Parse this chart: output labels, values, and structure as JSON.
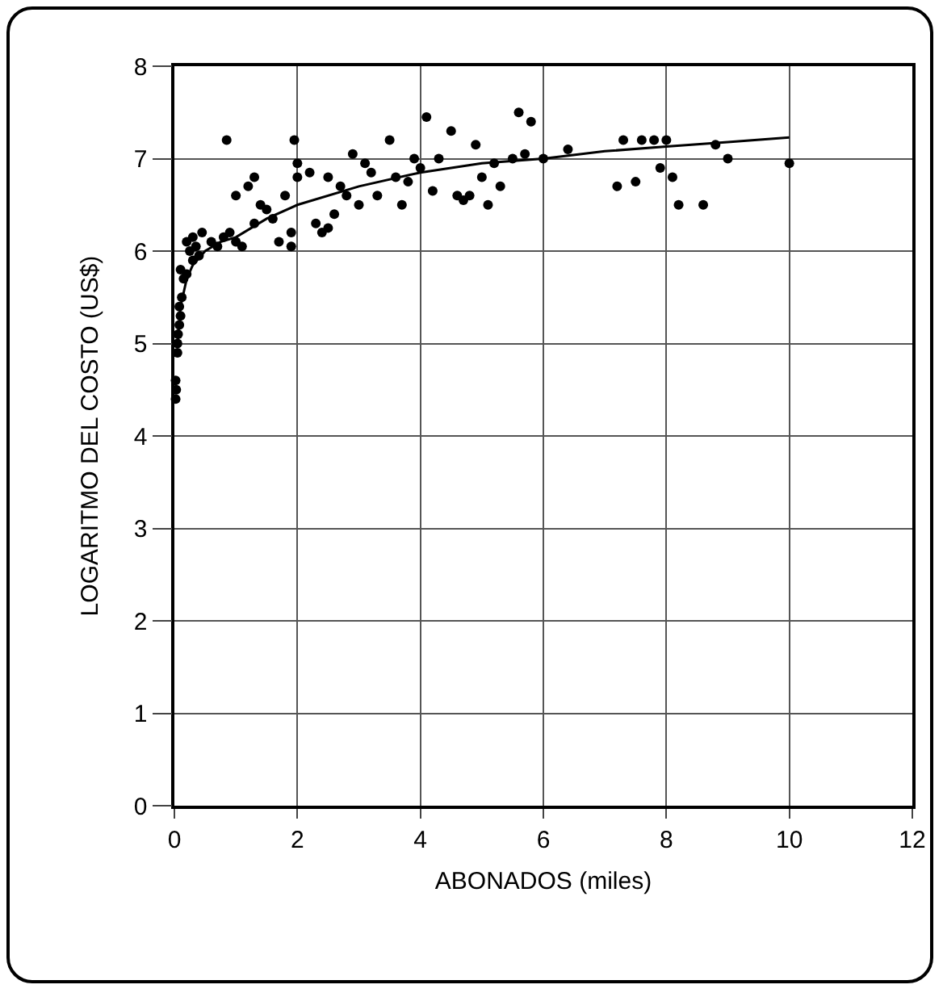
{
  "chart_data": {
    "type": "scatter",
    "xlabel": "ABONADOS (miles)",
    "ylabel": "LOGARITMO DEL COSTO (US$)",
    "xlim": [
      0,
      12
    ],
    "ylim": [
      0,
      8
    ],
    "xticks": [
      0,
      2,
      4,
      6,
      8,
      10,
      12
    ],
    "yticks": [
      0,
      1,
      2,
      3,
      4,
      5,
      6,
      7,
      8
    ],
    "grid": true,
    "marker": "circle",
    "x": [
      0.02,
      0.03,
      0.02,
      0.05,
      0.05,
      0.06,
      0.08,
      0.1,
      0.08,
      0.12,
      0.15,
      0.2,
      0.1,
      0.3,
      0.25,
      0.35,
      0.4,
      0.3,
      0.45,
      0.2,
      0.6,
      0.7,
      0.8,
      0.9,
      1.0,
      1.1,
      0.85,
      1.2,
      1.3,
      1.0,
      1.4,
      1.5,
      1.6,
      1.3,
      1.7,
      1.9,
      1.8,
      1.95,
      2.0,
      2.0,
      1.9,
      2.3,
      2.4,
      2.5,
      2.6,
      2.2,
      2.5,
      2.7,
      2.8,
      3.0,
      2.9,
      3.1,
      3.2,
      3.3,
      3.5,
      3.6,
      3.7,
      3.8,
      3.9,
      4.0,
      4.1,
      4.2,
      4.3,
      4.5,
      4.6,
      4.7,
      4.8,
      4.9,
      5.0,
      5.1,
      5.2,
      5.3,
      5.5,
      5.6,
      5.8,
      5.7,
      6.0,
      6.4,
      7.2,
      7.3,
      7.5,
      7.6,
      7.8,
      8.0,
      7.9,
      8.1,
      8.2,
      8.6,
      8.8,
      9.0,
      10.0
    ],
    "series": [
      {
        "type": "scatter",
        "color": "#000000",
        "values": [
          4.4,
          4.5,
          4.6,
          4.9,
          5.0,
          5.1,
          5.2,
          5.3,
          5.4,
          5.5,
          5.7,
          5.75,
          5.8,
          5.9,
          6.0,
          6.05,
          5.95,
          6.15,
          6.2,
          6.1,
          6.1,
          6.05,
          6.15,
          6.2,
          6.1,
          6.05,
          7.2,
          6.7,
          6.8,
          6.6,
          6.5,
          6.45,
          6.35,
          6.3,
          6.1,
          6.05,
          6.6,
          7.2,
          6.95,
          6.8,
          6.2,
          6.3,
          6.2,
          6.25,
          6.4,
          6.85,
          6.8,
          6.7,
          6.6,
          6.5,
          7.05,
          6.95,
          6.85,
          6.6,
          7.2,
          6.8,
          6.5,
          6.75,
          7.0,
          6.9,
          7.45,
          6.65,
          7.0,
          7.3,
          6.6,
          6.55,
          6.6,
          7.15,
          6.8,
          6.5,
          6.95,
          6.7,
          7.0,
          7.5,
          7.4,
          7.05,
          7.0,
          7.1,
          6.7,
          7.2,
          6.75,
          7.2,
          7.2,
          7.2,
          6.9,
          6.8,
          6.5,
          6.5,
          7.15,
          7.0,
          6.95
        ]
      },
      {
        "type": "line",
        "color": "#000000",
        "marker": "none",
        "line_style": "solid",
        "x": [
          0.05,
          0.1,
          0.2,
          0.3,
          0.5,
          0.75,
          1,
          1.5,
          2,
          3,
          4,
          5,
          6,
          7,
          8,
          9,
          10
        ],
        "values": [
          5.0,
          5.4,
          5.7,
          5.85,
          6.0,
          6.1,
          6.15,
          6.35,
          6.5,
          6.7,
          6.85,
          6.95,
          7.0,
          7.08,
          7.13,
          7.18,
          7.23
        ]
      }
    ]
  }
}
